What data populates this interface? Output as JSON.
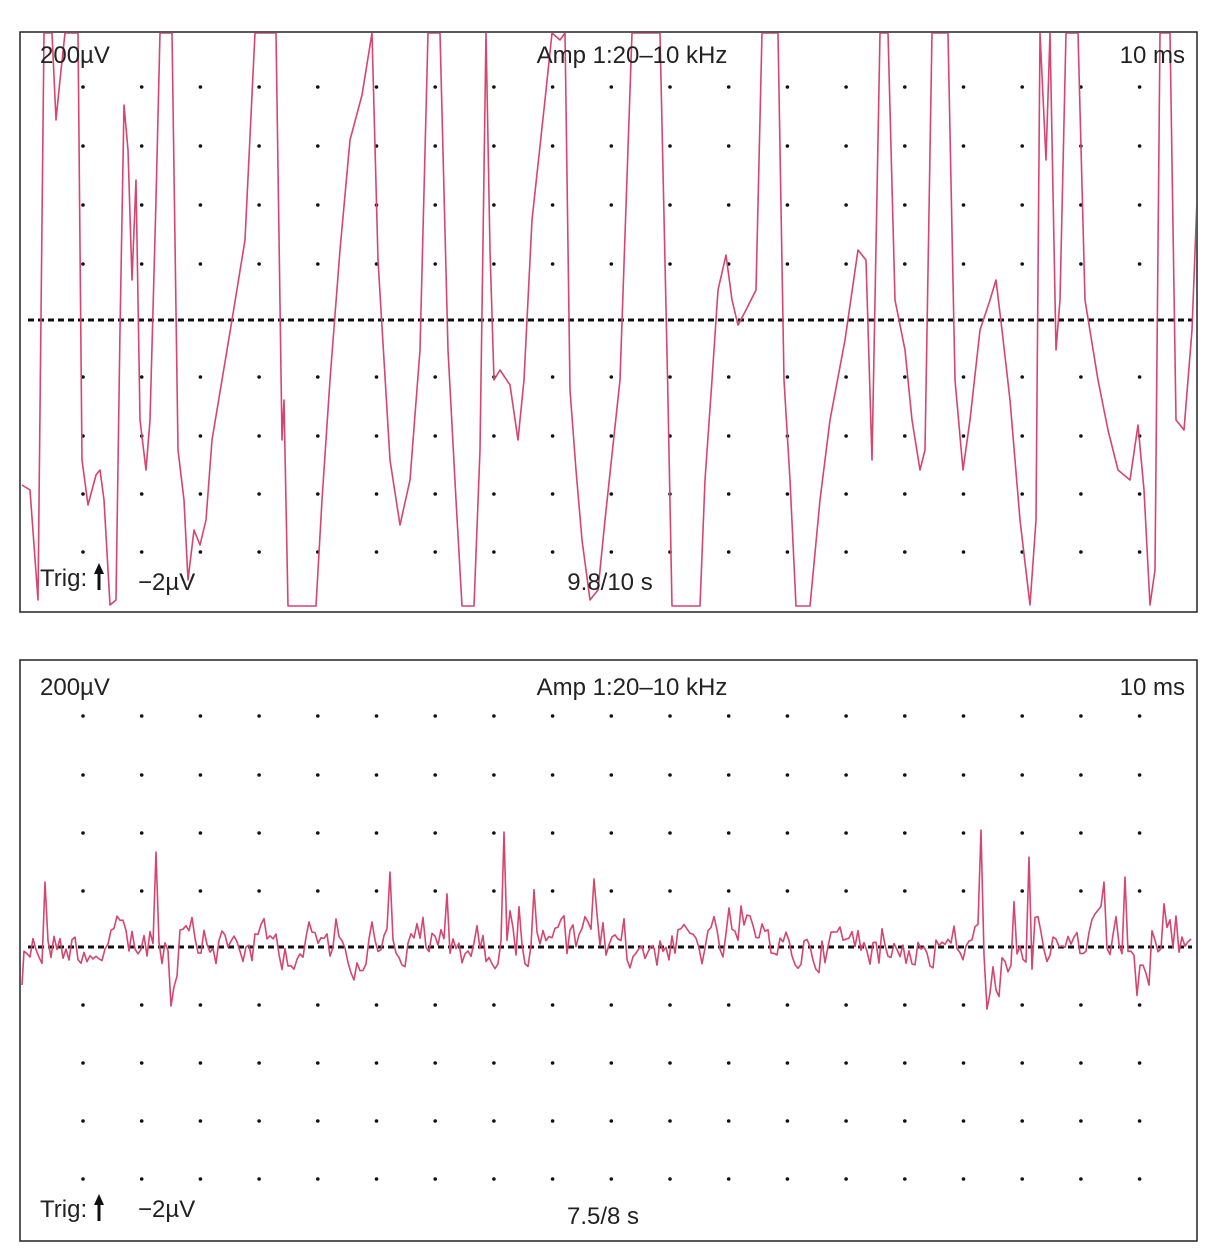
{
  "panels": [
    {
      "sensitivity": "200µV",
      "filter": "Amp 1:20–10 kHz",
      "sweep": "10 ms",
      "trigger": "Trig:",
      "trigger_level": "−2µV",
      "counter": "9.8/10 s"
    },
    {
      "sensitivity": "200µV",
      "filter": "Amp 1:20–10 kHz",
      "sweep": "10 ms",
      "trigger": "Trig:",
      "trigger_level": "−2µV",
      "counter": "7.5/8 s"
    }
  ]
}
